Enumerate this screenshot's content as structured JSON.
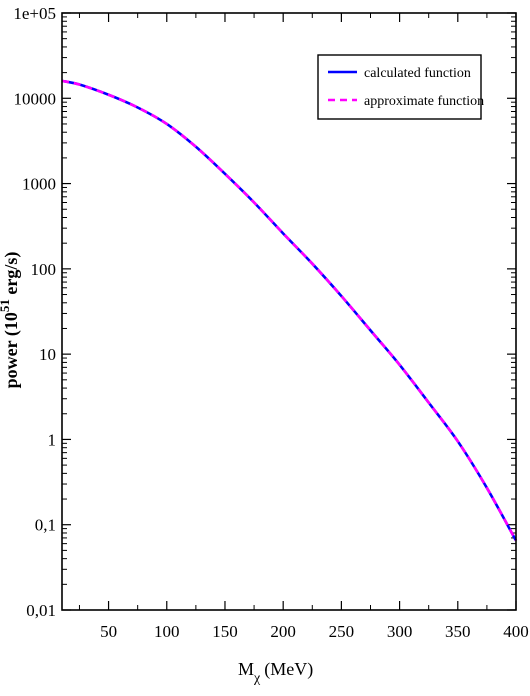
{
  "chart_data": {
    "type": "line",
    "title": "",
    "xlabel": {
      "main": "M",
      "sub": "χ",
      "unit": "(MeV)"
    },
    "ylabel": {
      "main": "power (10",
      "sup": "51",
      "unit": " erg/s)"
    },
    "xlim": [
      10,
      400
    ],
    "ylim": [
      0.01,
      100000
    ],
    "yscale": "log",
    "x_ticks": [
      50,
      100,
      150,
      200,
      250,
      300,
      350,
      400
    ],
    "x_tick_labels": [
      "50",
      "100",
      "150",
      "200",
      "250",
      "300",
      "350",
      "400"
    ],
    "y_ticks": [
      0.01,
      0.1,
      1,
      10,
      100,
      1000,
      10000,
      100000
    ],
    "y_tick_labels": [
      "0,01",
      "0,1",
      "1",
      "10",
      "100",
      "1000",
      "10000",
      "1e+05"
    ],
    "grid": false,
    "legend_position": "top-right",
    "series": [
      {
        "name": "calculated function",
        "color": "#0000ff",
        "style": "solid",
        "x": [
          10,
          25,
          50,
          75,
          100,
          125,
          150,
          175,
          200,
          225,
          250,
          275,
          300,
          325,
          350,
          375,
          400
        ],
        "y": [
          16000,
          14500,
          11000,
          7800,
          5000,
          2700,
          1300,
          600,
          260,
          115,
          48,
          19,
          7.5,
          2.7,
          0.95,
          0.27,
          0.065
        ]
      },
      {
        "name": "approximate function",
        "color": "#ff00ff",
        "style": "dashed",
        "x": [
          10,
          25,
          50,
          75,
          100,
          125,
          150,
          175,
          200,
          225,
          250,
          275,
          300,
          325,
          350,
          375,
          400
        ],
        "y": [
          16000,
          14500,
          11000,
          7800,
          5000,
          2700,
          1300,
          600,
          260,
          115,
          48,
          19,
          7.5,
          2.7,
          0.95,
          0.27,
          0.065
        ]
      }
    ]
  }
}
